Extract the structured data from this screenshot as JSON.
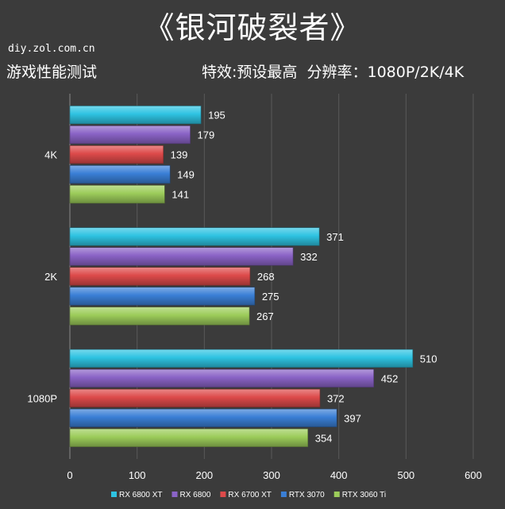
{
  "header": {
    "title": "《银河破裂者》",
    "source": "diy.zol.com.cn",
    "test_label": "游戏性能测试",
    "settings_label": "特效:预设最高  分辨率：1080P/2K/4K"
  },
  "colors": {
    "background": "#3b3b3b",
    "grid": "#5a5a5a",
    "text": "#ffffff"
  },
  "chart_data": {
    "type": "bar",
    "orientation": "horizontal",
    "categories": [
      "4K",
      "2K",
      "1080P"
    ],
    "series": [
      {
        "name": "RX 6800 XT",
        "color": "#2ec3e2",
        "values": [
          195,
          371,
          510
        ]
      },
      {
        "name": "RX 6800",
        "color": "#8a63c6",
        "values": [
          179,
          332,
          452
        ]
      },
      {
        "name": "RX 6700 XT",
        "color": "#dd4a4a",
        "values": [
          139,
          268,
          372
        ]
      },
      {
        "name": "RTX 3070",
        "color": "#3a7fd6",
        "values": [
          149,
          275,
          397
        ]
      },
      {
        "name": "RTX 3060 Ti",
        "color": "#9ccc5a",
        "values": [
          141,
          267,
          354
        ]
      }
    ],
    "xlim": [
      0,
      600
    ],
    "xticks": [
      0,
      100,
      200,
      300,
      400,
      500,
      600
    ],
    "grid": true,
    "legend": "bottom"
  }
}
